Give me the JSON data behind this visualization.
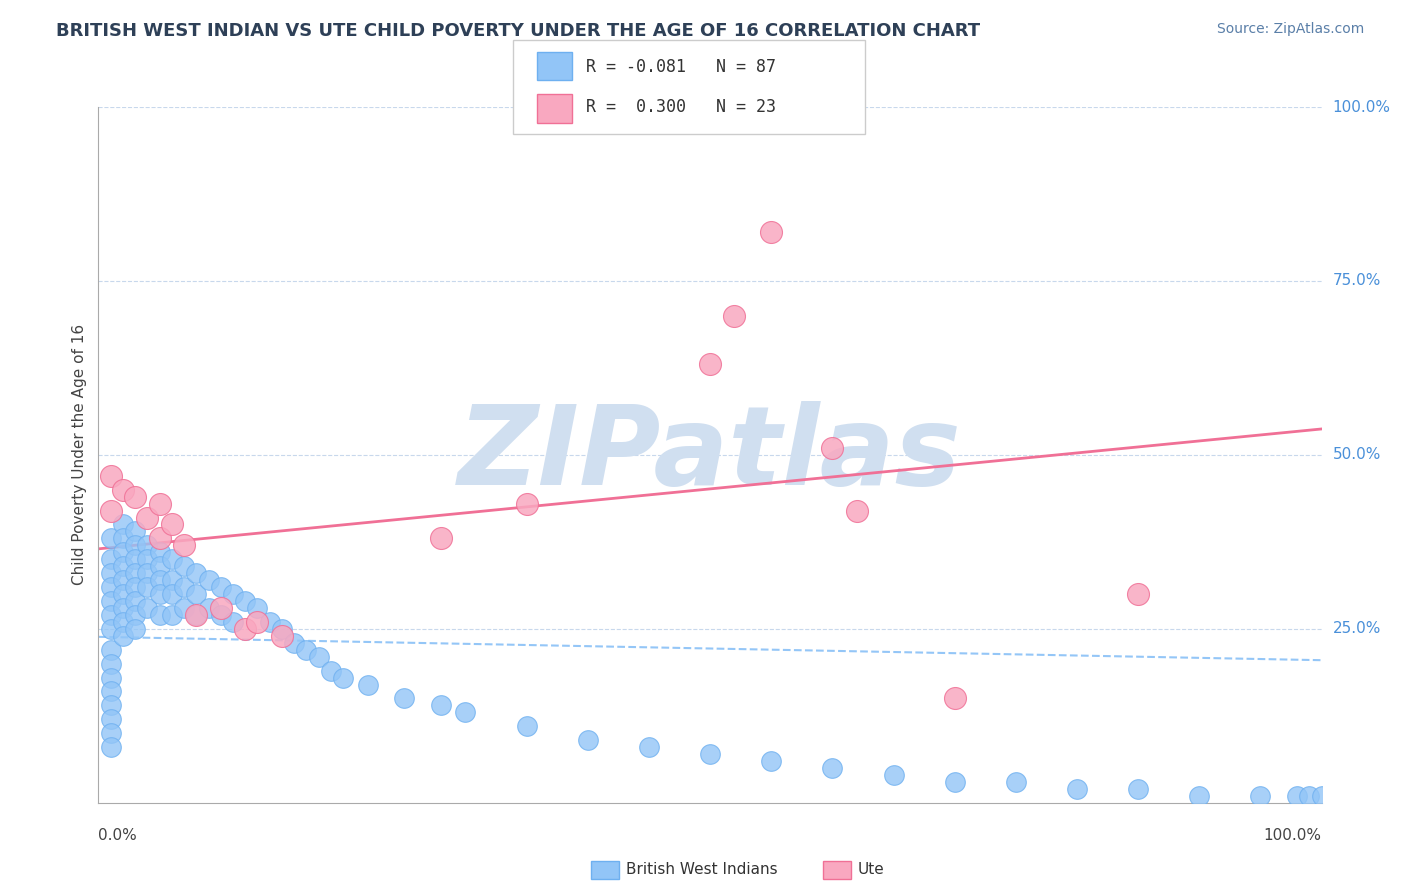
{
  "title": "BRITISH WEST INDIAN VS UTE CHILD POVERTY UNDER THE AGE OF 16 CORRELATION CHART",
  "source": "Source: ZipAtlas.com",
  "ylabel": "Child Poverty Under the Age of 16",
  "blue_R": -0.081,
  "blue_N": 87,
  "pink_R": 0.3,
  "pink_N": 23,
  "blue_color": "#92C5F7",
  "blue_edge_color": "#6EB0F0",
  "pink_color": "#F9A8C0",
  "pink_edge_color": "#F07096",
  "blue_line_color": "#7AB8F5",
  "pink_line_color": "#F07096",
  "title_color": "#2E4057",
  "source_color": "#5A7FA8",
  "watermark": "ZIPatlas",
  "watermark_color": "#D0DFF0",
  "label_blue": "British West Indians",
  "label_pink": "Ute",
  "blue_x": [
    0.01,
    0.01,
    0.01,
    0.01,
    0.01,
    0.01,
    0.01,
    0.01,
    0.01,
    0.01,
    0.01,
    0.01,
    0.01,
    0.01,
    0.01,
    0.02,
    0.02,
    0.02,
    0.02,
    0.02,
    0.02,
    0.02,
    0.02,
    0.02,
    0.03,
    0.03,
    0.03,
    0.03,
    0.03,
    0.03,
    0.03,
    0.03,
    0.04,
    0.04,
    0.04,
    0.04,
    0.04,
    0.05,
    0.05,
    0.05,
    0.05,
    0.05,
    0.06,
    0.06,
    0.06,
    0.06,
    0.07,
    0.07,
    0.07,
    0.08,
    0.08,
    0.08,
    0.09,
    0.09,
    0.1,
    0.1,
    0.11,
    0.11,
    0.12,
    0.13,
    0.14,
    0.15,
    0.16,
    0.17,
    0.18,
    0.19,
    0.2,
    0.22,
    0.25,
    0.28,
    0.3,
    0.35,
    0.4,
    0.45,
    0.5,
    0.55,
    0.6,
    0.65,
    0.7,
    0.75,
    0.8,
    0.85,
    0.9,
    0.95,
    0.98,
    0.99,
    1.0
  ],
  "blue_y": [
    0.38,
    0.35,
    0.33,
    0.31,
    0.29,
    0.27,
    0.25,
    0.22,
    0.2,
    0.18,
    0.16,
    0.14,
    0.12,
    0.1,
    0.08,
    0.4,
    0.38,
    0.36,
    0.34,
    0.32,
    0.3,
    0.28,
    0.26,
    0.24,
    0.39,
    0.37,
    0.35,
    0.33,
    0.31,
    0.29,
    0.27,
    0.25,
    0.37,
    0.35,
    0.33,
    0.31,
    0.28,
    0.36,
    0.34,
    0.32,
    0.3,
    0.27,
    0.35,
    0.32,
    0.3,
    0.27,
    0.34,
    0.31,
    0.28,
    0.33,
    0.3,
    0.27,
    0.32,
    0.28,
    0.31,
    0.27,
    0.3,
    0.26,
    0.29,
    0.28,
    0.26,
    0.25,
    0.23,
    0.22,
    0.21,
    0.19,
    0.18,
    0.17,
    0.15,
    0.14,
    0.13,
    0.11,
    0.09,
    0.08,
    0.07,
    0.06,
    0.05,
    0.04,
    0.03,
    0.03,
    0.02,
    0.02,
    0.01,
    0.01,
    0.01,
    0.01,
    0.01
  ],
  "pink_x": [
    0.01,
    0.01,
    0.02,
    0.03,
    0.04,
    0.05,
    0.05,
    0.06,
    0.07,
    0.08,
    0.1,
    0.12,
    0.13,
    0.15,
    0.28,
    0.35,
    0.5,
    0.52,
    0.55,
    0.6,
    0.62,
    0.7,
    0.85
  ],
  "pink_y": [
    0.42,
    0.47,
    0.45,
    0.44,
    0.41,
    0.43,
    0.38,
    0.4,
    0.37,
    0.27,
    0.28,
    0.25,
    0.26,
    0.24,
    0.38,
    0.43,
    0.63,
    0.7,
    0.82,
    0.51,
    0.42,
    0.15,
    0.3
  ]
}
